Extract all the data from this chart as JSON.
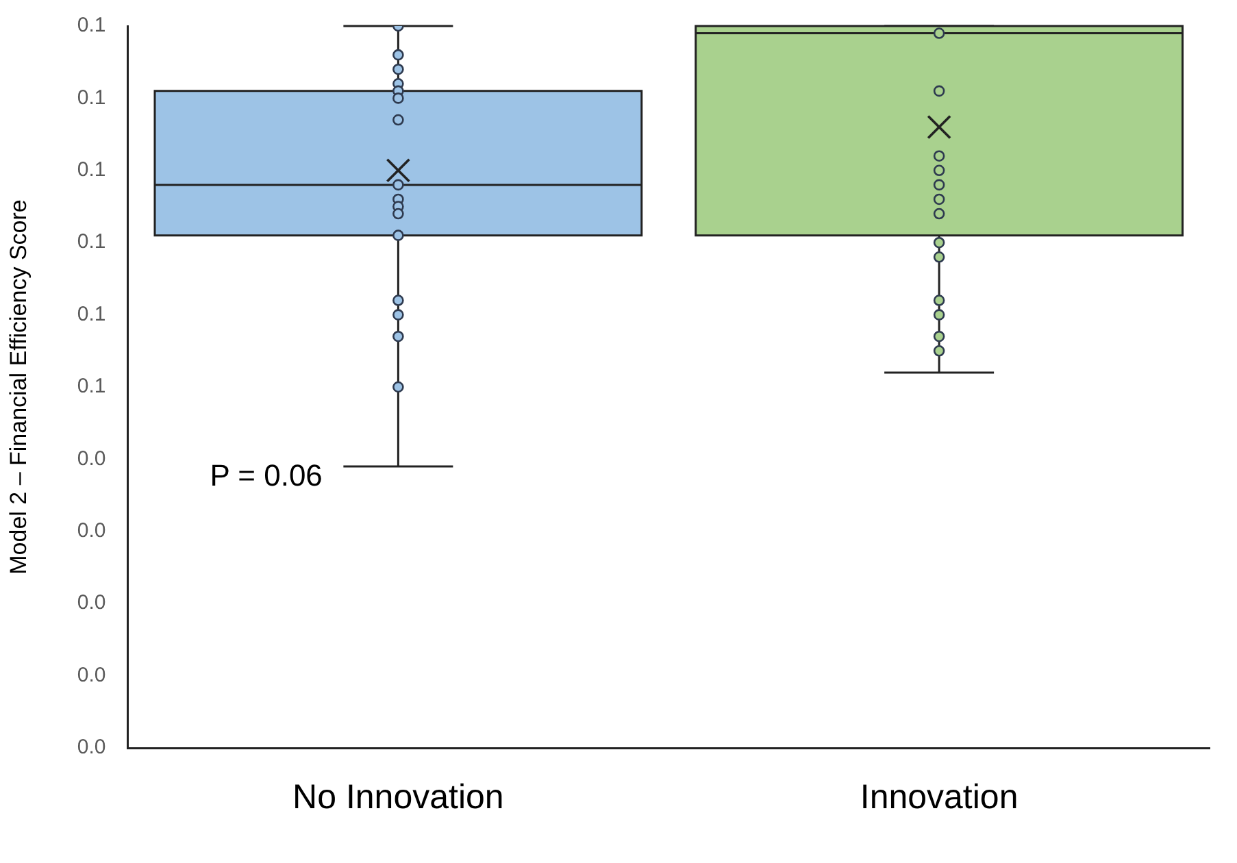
{
  "chart_data": {
    "type": "box",
    "ylabel": "Model 2 – Financial Efficiency Score",
    "categories": [
      "No Innovation",
      "Innovation"
    ],
    "colors": [
      "#9dc3e6",
      "#a9d18e"
    ],
    "boxes": [
      {
        "low": 0.039,
        "q1": 0.071,
        "median": 0.078,
        "q3": 0.091,
        "high": 0.1,
        "mean": 0.08
      },
      {
        "low": 0.052,
        "q1": 0.071,
        "median": 0.099,
        "q3": 0.1,
        "high": 0.1,
        "mean": 0.086
      }
    ],
    "series": [
      {
        "type": "scatter",
        "color": "#9dc3e6",
        "x": [
          "No Innovation",
          "No Innovation",
          "No Innovation",
          "No Innovation",
          "No Innovation",
          "No Innovation",
          "No Innovation",
          "No Innovation",
          "No Innovation",
          "No Innovation",
          "No Innovation",
          "No Innovation",
          "No Innovation",
          "No Innovation",
          "No Innovation",
          "No Innovation"
        ],
        "values": [
          0.1,
          0.096,
          0.094,
          0.092,
          0.091,
          0.09,
          0.087,
          0.078,
          0.076,
          0.075,
          0.074,
          0.071,
          0.062,
          0.06,
          0.057,
          0.05
        ]
      },
      {
        "type": "scatter",
        "color": "#a9d18e",
        "x": [
          "Innovation",
          "Innovation",
          "Innovation",
          "Innovation",
          "Innovation",
          "Innovation",
          "Innovation",
          "Innovation",
          "Innovation",
          "Innovation",
          "Innovation",
          "Innovation",
          "Innovation"
        ],
        "values": [
          0.099,
          0.091,
          0.082,
          0.08,
          0.078,
          0.076,
          0.074,
          0.07,
          0.068,
          0.062,
          0.06,
          0.057,
          0.055
        ]
      }
    ],
    "ylim": [
      0,
      0.1
    ],
    "yticks": [
      {
        "value": 0,
        "label": "0.0"
      },
      {
        "value": 0.01,
        "label": "0.0"
      },
      {
        "value": 0.02,
        "label": "0.0"
      },
      {
        "value": 0.03,
        "label": "0.0"
      },
      {
        "value": 0.04,
        "label": "0.0"
      },
      {
        "value": 0.05,
        "label": "0.1"
      },
      {
        "value": 0.06,
        "label": "0.1"
      },
      {
        "value": 0.07,
        "label": "0.1"
      },
      {
        "value": 0.08,
        "label": "0.1"
      },
      {
        "value": 0.09,
        "label": "0.1"
      },
      {
        "value": 0.1,
        "label": "0.1"
      }
    ],
    "marker": "circle",
    "grid": false,
    "legend": false,
    "annotations": [
      "P = 0.06"
    ]
  }
}
